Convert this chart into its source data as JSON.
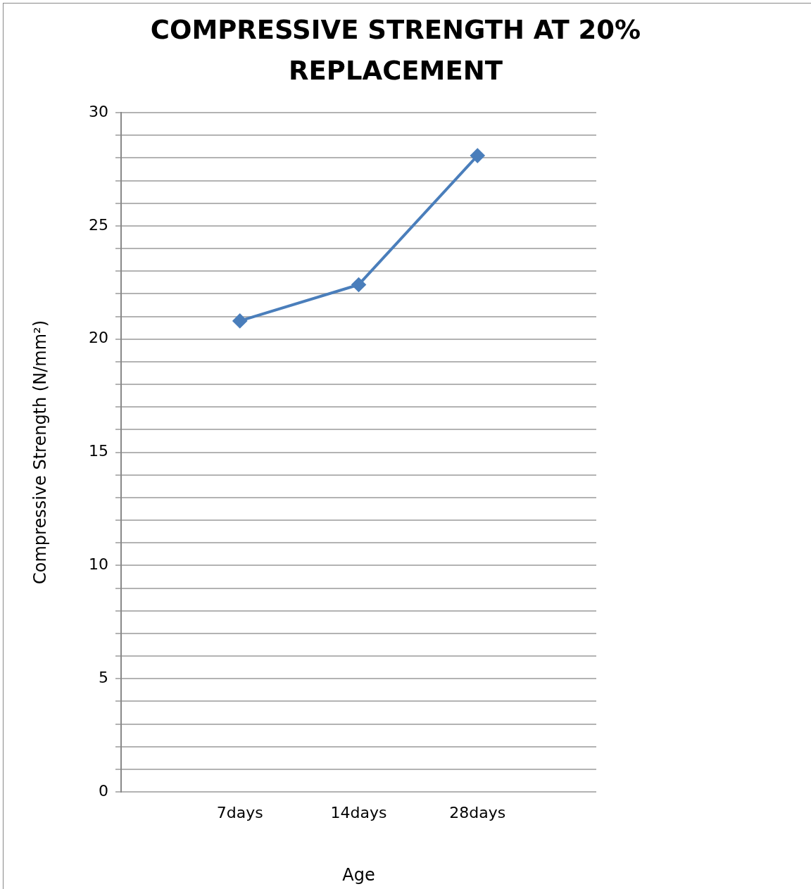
{
  "chart_data": {
    "type": "line",
    "title": "COMPRESSIVE STRENGTH AT 20% REPLACEMENT",
    "xlabel": "Age",
    "ylabel": "Compressive Strength (N/mm²)",
    "categories": [
      "7days",
      "14days",
      "28days"
    ],
    "series": [
      {
        "color": "#4a7ebb",
        "values": [
          20.8,
          22.4,
          28.1
        ]
      }
    ],
    "ylim": [
      0,
      30
    ],
    "yticks": [
      0,
      {
        "value": 1,
        "label": null
      },
      {
        "value": 2,
        "label": null
      },
      {
        "value": 3,
        "label": null
      },
      {
        "value": 4,
        "label": null
      },
      5,
      {
        "value": 6,
        "label": null
      },
      {
        "value": 7,
        "label": null
      },
      {
        "value": 8,
        "label": null
      },
      {
        "value": 9,
        "label": null
      },
      10,
      {
        "value": 11,
        "label": null
      },
      {
        "value": 12,
        "label": null
      },
      {
        "value": 13,
        "label": null
      },
      {
        "value": 14,
        "label": null
      },
      15,
      {
        "value": 16,
        "label": null
      },
      {
        "value": 17,
        "label": null
      },
      {
        "value": 18,
        "label": null
      },
      {
        "value": 19,
        "label": null
      },
      20,
      {
        "value": 21,
        "label": null
      },
      {
        "value": 22,
        "label": null
      },
      {
        "value": 23,
        "label": null
      },
      {
        "value": 24,
        "label": null
      },
      25,
      {
        "value": 26,
        "label": null
      },
      {
        "value": 27,
        "label": null
      },
      {
        "value": 28,
        "label": null
      },
      {
        "value": 29,
        "label": null
      },
      30
    ],
    "grid": "y",
    "legend": false,
    "marker": "diamond",
    "line_style": "solid"
  }
}
